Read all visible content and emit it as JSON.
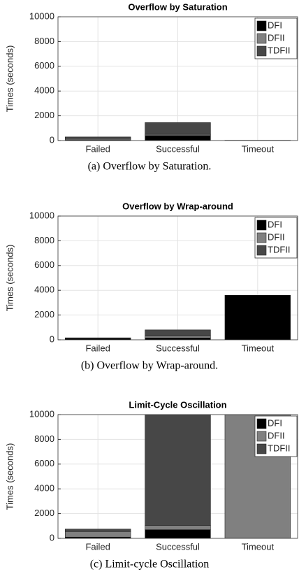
{
  "chart_data": [
    {
      "type": "bar",
      "stacked": true,
      "title": "Overflow by Saturation",
      "ylabel": "Times (seconds)",
      "caption": "(a) Overflow by Saturation.",
      "categories": [
        "Failed",
        "Successful",
        "Timeout"
      ],
      "series": [
        {
          "name": "DFI",
          "color": "#000000",
          "values": [
            60,
            400,
            10
          ]
        },
        {
          "name": "DFII",
          "color": "#808080",
          "values": [
            100,
            100,
            5
          ]
        },
        {
          "name": "TDFII",
          "color": "#474747",
          "values": [
            130,
            950,
            5
          ]
        }
      ],
      "ylim": [
        0,
        10000
      ],
      "yticks": [
        0,
        2000,
        4000,
        6000,
        8000,
        10000
      ],
      "grid": true,
      "legend": "upper right"
    },
    {
      "type": "bar",
      "stacked": true,
      "title": "Overflow by Wrap-around",
      "ylabel": "Times (seconds)",
      "caption": "(b) Overflow by Wrap-around.",
      "categories": [
        "Failed",
        "Successful",
        "Timeout"
      ],
      "series": [
        {
          "name": "DFI",
          "color": "#000000",
          "values": [
            100,
            150,
            3600
          ]
        },
        {
          "name": "DFII",
          "color": "#808080",
          "values": [
            30,
            150,
            0
          ]
        },
        {
          "name": "TDFII",
          "color": "#474747",
          "values": [
            30,
            500,
            0
          ]
        }
      ],
      "ylim": [
        0,
        10000
      ],
      "yticks": [
        0,
        2000,
        4000,
        6000,
        8000,
        10000
      ],
      "grid": true,
      "legend": "upper right"
    },
    {
      "type": "bar",
      "stacked": true,
      "title": "Limit-Cycle Oscillation",
      "ylabel": "Times (seconds)",
      "caption": "(c) Limit-cycle Oscillation",
      "categories": [
        "Failed",
        "Successful",
        "Timeout"
      ],
      "series": [
        {
          "name": "DFI",
          "color": "#000000",
          "values": [
            100,
            700,
            0
          ]
        },
        {
          "name": "DFII",
          "color": "#808080",
          "values": [
            450,
            350,
            10000
          ]
        },
        {
          "name": "TDFII",
          "color": "#474747",
          "values": [
            200,
            8950,
            0
          ]
        }
      ],
      "ylim": [
        0,
        10000
      ],
      "yticks": [
        0,
        2000,
        4000,
        6000,
        8000,
        10000
      ],
      "grid": true,
      "legend": "upper right"
    }
  ]
}
